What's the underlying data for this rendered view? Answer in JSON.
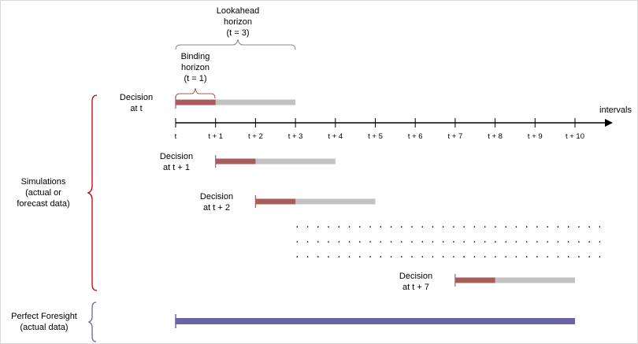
{
  "colors": {
    "binding": "#a85c5c",
    "lookahead": "#c2c2c2",
    "foresight": "#6b65a8",
    "sim_brace": "#c00000",
    "pf_brace": "#6b65a8",
    "axis": "#000000",
    "frame": "#d9d9d9"
  },
  "lookahead_label": [
    "Lookahead",
    "horizon",
    "(t = 3)"
  ],
  "binding_label": [
    "Binding",
    "horizon",
    "(t = 1)"
  ],
  "axis": {
    "label": "intervals",
    "ticks": [
      "t",
      "t + 1",
      "t + 2",
      "t + 3",
      "t + 4",
      "t + 5",
      "t + 6",
      "t + 7",
      "t + 8",
      "t + 9",
      "t + 10"
    ]
  },
  "simulations_label": [
    "Simulations",
    "(actual or",
    "forecast data)"
  ],
  "perfect_foresight_label": [
    "Perfect Foresight",
    "(actual data)"
  ],
  "decisions": [
    {
      "label": [
        "Decision",
        "at t"
      ],
      "start": 0,
      "binding": 1,
      "lookahead": 3
    },
    {
      "label": [
        "Decision",
        "at t + 1"
      ],
      "start": 1,
      "binding": 1,
      "lookahead": 3
    },
    {
      "label": [
        "Decision",
        "at t + 2"
      ],
      "start": 2,
      "binding": 1,
      "lookahead": 3
    },
    {
      "label": [
        "Decision",
        "at t + 7"
      ],
      "start": 7,
      "binding": 1,
      "lookahead": 3
    }
  ],
  "ellipsis_rows": [
    ". . . . . . . . . . . . . . . . . . . . . . . . . . . . . .",
    ". . . . . . . . . . . . . . . . . . . . . . . . . . . . . .",
    ". . . . . . . . . . . . . . . . . . . . . . . . . . . . . ."
  ],
  "perfect_foresight_bar": {
    "start": 0,
    "end": 10
  }
}
